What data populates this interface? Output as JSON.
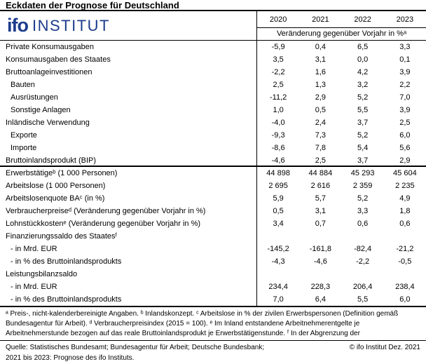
{
  "title": "Eckdaten der Prognose für Deutschland",
  "logo": {
    "ifo": "ifo",
    "institut": "INSTITUT"
  },
  "colors": {
    "logo_blue": "#1c3c8c",
    "text": "#000000",
    "background": "#ffffff"
  },
  "chart_data": {
    "type": "table",
    "title": "Eckdaten der Prognose für Deutschland",
    "years": [
      "2020",
      "2021",
      "2022",
      "2023"
    ],
    "unit_header": "Veränderung gegenüber Vorjahr in %ᵃ",
    "sections": [
      {
        "rows": [
          {
            "label": "Private Konsumausgaben",
            "indent": 0,
            "values": [
              "-5,9",
              "0,4",
              "6,5",
              "3,3"
            ]
          },
          {
            "label": "Konsumausgaben des Staates",
            "indent": 0,
            "values": [
              "3,5",
              "3,1",
              "0,0",
              "0,1"
            ]
          },
          {
            "label": "Bruttoanlageinvestitionen",
            "indent": 0,
            "values": [
              "-2,2",
              "1,6",
              "4,2",
              "3,9"
            ]
          },
          {
            "label": "Bauten",
            "indent": 1,
            "values": [
              "2,5",
              "1,3",
              "3,2",
              "2,2"
            ]
          },
          {
            "label": "Ausrüstungen",
            "indent": 1,
            "values": [
              "-11,2",
              "2,9",
              "5,2",
              "7,0"
            ]
          },
          {
            "label": "Sonstige Anlagen",
            "indent": 1,
            "values": [
              "1,0",
              "0,5",
              "5,5",
              "3,9"
            ]
          },
          {
            "label": "Inländische Verwendung",
            "indent": 0,
            "values": [
              "-4,0",
              "2,4",
              "3,7",
              "2,5"
            ]
          },
          {
            "label": "Exporte",
            "indent": 1,
            "values": [
              "-9,3",
              "7,3",
              "5,2",
              "6,0"
            ]
          },
          {
            "label": "Importe",
            "indent": 1,
            "values": [
              "-8,6",
              "7,8",
              "5,4",
              "5,6"
            ]
          },
          {
            "label": "Bruttoinlandsprodukt (BIP)",
            "indent": 0,
            "values": [
              "-4,6",
              "2,5",
              "3,7",
              "2,9"
            ]
          }
        ]
      },
      {
        "rows": [
          {
            "label": "Erwerbstätigeᵇ (1 000 Personen)",
            "indent": 0,
            "values": [
              "44 898",
              "44 884",
              "45 293",
              "45 604"
            ]
          },
          {
            "label": "Arbeitslose (1 000 Personen)",
            "indent": 0,
            "values": [
              "2 695",
              "2 616",
              "2 359",
              "2 235"
            ]
          },
          {
            "label": "Arbeitslosenquote BAᶜ (in %)",
            "indent": 0,
            "values": [
              "5,9",
              "5,7",
              "5,2",
              "4,9"
            ]
          },
          {
            "label": "Verbraucherpreiseᵈ (Veränderung gegenüber Vorjahr in %)",
            "indent": 0,
            "values": [
              "0,5",
              "3,1",
              "3,3",
              "1,8"
            ]
          },
          {
            "label": "Lohnstückkostenᵉ (Veränderung gegenüber Vorjahr in %)",
            "indent": 0,
            "values": [
              "3,4",
              "0,7",
              "0,6",
              "0,6"
            ]
          },
          {
            "label": "Finanzierungssaldo des Staatesᶠ",
            "indent": 0,
            "values": [
              "",
              "",
              "",
              ""
            ]
          },
          {
            "label": "- in Mrd. EUR",
            "indent": 1,
            "values": [
              "-145,2",
              "-161,8",
              "-82,4",
              "-21,2"
            ]
          },
          {
            "label": "- in % des Bruttoinlandsprodukts",
            "indent": 1,
            "values": [
              "-4,3",
              "-4,6",
              "-2,2",
              "-0,5"
            ]
          },
          {
            "label": "Leistungsbilanzsaldo",
            "indent": 0,
            "values": [
              "",
              "",
              "",
              ""
            ]
          },
          {
            "label": "- in Mrd. EUR",
            "indent": 1,
            "values": [
              "234,4",
              "228,3",
              "206,4",
              "238,4"
            ]
          },
          {
            "label": "- in % des Bruttoinlandsprodukts",
            "indent": 1,
            "values": [
              "7,0",
              "6,4",
              "5,5",
              "6,0"
            ]
          }
        ]
      }
    ]
  },
  "footnotes": [
    "ᵃ Preis-, nicht-kalenderbereinigte Angaben. ᵇ Inlandskonzept. ᶜ Arbeitslose in % der zivilen Erwerbspersonen (Definition gemäß",
    "Bundesagentur für Arbeit). ᵈ Verbraucherpreisindex (2015 = 100). ᵉ Im Inland entstandene Arbeitnehmerentgelte je",
    "Arbeitnehmerstunde bezogen auf das reale Bruttoinlandsprodukt je Erwerbstätigenstunde. ᶠ In der Abgrenzung der"
  ],
  "source": {
    "line1": "Quelle: Statistisches Bundesamt; Bundesagentur für Arbeit; Deutsche Bundesbank;",
    "line2": "2021 bis 2023: Prognose des ifo Instituts.",
    "copyright": "© ifo Institut Dez. 2021"
  }
}
